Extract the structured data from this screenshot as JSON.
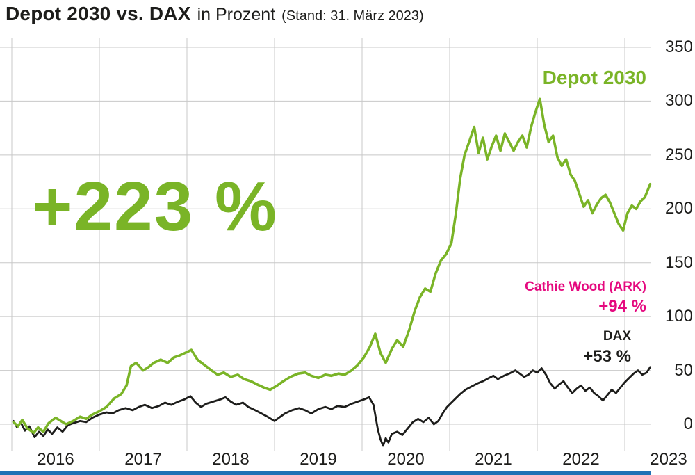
{
  "title": {
    "main": "Depot 2030 vs. DAX",
    "sub": "in Prozent",
    "note": "(Stand: 31. März 2023)"
  },
  "colors": {
    "green": "#7ab427",
    "pink": "#e5097f",
    "line_black": "#1d1d1b",
    "grid": "#c8c8c8",
    "blue": "#2071b5"
  },
  "annotations": {
    "big_return": "+223 %",
    "depot_label": "Depot 2030",
    "ark_label": "Cathie Wood (ARK)",
    "ark_return": "+94 %",
    "dax_label": "DAX",
    "dax_return": "+53 %"
  },
  "chart_data": {
    "type": "line",
    "title": "Depot 2030 vs. DAX in Prozent (Stand: 31. März 2023)",
    "xlabel": "",
    "ylabel": "Prozent",
    "grid": true,
    "legend_position": "annotated on chart",
    "x_tick_labels": [
      "2016",
      "2017",
      "2018",
      "2019",
      "2020",
      "2021",
      "2022",
      "2023"
    ],
    "y_ticks": [
      0,
      50,
      100,
      150,
      200,
      250,
      300,
      350
    ],
    "ylim": [
      -45,
      350
    ],
    "xlim_years": [
      2015.86,
      2023.3
    ],
    "series": [
      {
        "name": "DAX",
        "color": "#1d1d1b",
        "line_width": 2.8,
        "final_value_pct": 53,
        "points": [
          [
            2016.02,
            3
          ],
          [
            2016.06,
            -3
          ],
          [
            2016.1,
            2
          ],
          [
            2016.15,
            -6
          ],
          [
            2016.2,
            -2
          ],
          [
            2016.26,
            -12
          ],
          [
            2016.31,
            -7
          ],
          [
            2016.36,
            -11
          ],
          [
            2016.41,
            -5
          ],
          [
            2016.46,
            -9
          ],
          [
            2016.52,
            -3
          ],
          [
            2016.58,
            -7
          ],
          [
            2016.64,
            -1
          ],
          [
            2016.7,
            1
          ],
          [
            2016.78,
            3
          ],
          [
            2016.85,
            2
          ],
          [
            2016.92,
            6
          ],
          [
            2017.0,
            9
          ],
          [
            2017.08,
            11
          ],
          [
            2017.15,
            10
          ],
          [
            2017.22,
            13
          ],
          [
            2017.3,
            15
          ],
          [
            2017.38,
            13
          ],
          [
            2017.45,
            16
          ],
          [
            2017.52,
            18
          ],
          [
            2017.6,
            15
          ],
          [
            2017.68,
            17
          ],
          [
            2017.75,
            20
          ],
          [
            2017.82,
            18
          ],
          [
            2017.9,
            21
          ],
          [
            2017.97,
            23
          ],
          [
            2018.04,
            26
          ],
          [
            2018.1,
            20
          ],
          [
            2018.16,
            16
          ],
          [
            2018.22,
            19
          ],
          [
            2018.3,
            21
          ],
          [
            2018.38,
            23
          ],
          [
            2018.44,
            25
          ],
          [
            2018.5,
            21
          ],
          [
            2018.56,
            18
          ],
          [
            2018.64,
            20
          ],
          [
            2018.7,
            16
          ],
          [
            2018.78,
            13
          ],
          [
            2018.85,
            10
          ],
          [
            2018.92,
            7
          ],
          [
            2019.0,
            3
          ],
          [
            2019.05,
            6
          ],
          [
            2019.12,
            10
          ],
          [
            2019.2,
            13
          ],
          [
            2019.28,
            15
          ],
          [
            2019.35,
            13
          ],
          [
            2019.42,
            10
          ],
          [
            2019.5,
            14
          ],
          [
            2019.58,
            16
          ],
          [
            2019.65,
            14
          ],
          [
            2019.72,
            17
          ],
          [
            2019.8,
            16
          ],
          [
            2019.88,
            19
          ],
          [
            2019.95,
            21
          ],
          [
            2020.02,
            23
          ],
          [
            2020.08,
            25
          ],
          [
            2020.13,
            18
          ],
          [
            2020.18,
            -5
          ],
          [
            2020.21,
            -14
          ],
          [
            2020.24,
            -20
          ],
          [
            2020.27,
            -13
          ],
          [
            2020.3,
            -17
          ],
          [
            2020.34,
            -9
          ],
          [
            2020.4,
            -7
          ],
          [
            2020.46,
            -10
          ],
          [
            2020.52,
            -4
          ],
          [
            2020.58,
            2
          ],
          [
            2020.64,
            5
          ],
          [
            2020.7,
            2
          ],
          [
            2020.76,
            6
          ],
          [
            2020.82,
            0
          ],
          [
            2020.87,
            3
          ],
          [
            2020.92,
            10
          ],
          [
            2020.97,
            16
          ],
          [
            2021.02,
            20
          ],
          [
            2021.07,
            24
          ],
          [
            2021.12,
            28
          ],
          [
            2021.18,
            32
          ],
          [
            2021.25,
            35
          ],
          [
            2021.32,
            38
          ],
          [
            2021.38,
            40
          ],
          [
            2021.45,
            43
          ],
          [
            2021.5,
            45
          ],
          [
            2021.55,
            42
          ],
          [
            2021.62,
            45
          ],
          [
            2021.68,
            47
          ],
          [
            2021.75,
            50
          ],
          [
            2021.8,
            47
          ],
          [
            2021.85,
            44
          ],
          [
            2021.9,
            46
          ],
          [
            2021.95,
            50
          ],
          [
            2022.0,
            48
          ],
          [
            2022.05,
            52
          ],
          [
            2022.1,
            46
          ],
          [
            2022.15,
            38
          ],
          [
            2022.2,
            33
          ],
          [
            2022.25,
            37
          ],
          [
            2022.3,
            40
          ],
          [
            2022.35,
            34
          ],
          [
            2022.4,
            29
          ],
          [
            2022.45,
            33
          ],
          [
            2022.5,
            36
          ],
          [
            2022.55,
            31
          ],
          [
            2022.6,
            34
          ],
          [
            2022.65,
            29
          ],
          [
            2022.7,
            26
          ],
          [
            2022.75,
            22
          ],
          [
            2022.8,
            27
          ],
          [
            2022.85,
            32
          ],
          [
            2022.9,
            29
          ],
          [
            2022.95,
            34
          ],
          [
            2023.0,
            39
          ],
          [
            2023.05,
            43
          ],
          [
            2023.1,
            47
          ],
          [
            2023.15,
            50
          ],
          [
            2023.2,
            46
          ],
          [
            2023.25,
            48
          ],
          [
            2023.29,
            53
          ]
        ]
      },
      {
        "name": "Depot 2030",
        "color": "#7ab427",
        "line_width": 3.6,
        "final_value_pct": 223,
        "points": [
          [
            2016.02,
            2
          ],
          [
            2016.07,
            -2
          ],
          [
            2016.12,
            4
          ],
          [
            2016.18,
            -4
          ],
          [
            2016.25,
            -8
          ],
          [
            2016.3,
            -3
          ],
          [
            2016.36,
            -7
          ],
          [
            2016.42,
            1
          ],
          [
            2016.5,
            6
          ],
          [
            2016.56,
            3
          ],
          [
            2016.62,
            0
          ],
          [
            2016.7,
            3
          ],
          [
            2016.78,
            7
          ],
          [
            2016.85,
            5
          ],
          [
            2016.92,
            9
          ],
          [
            2017.0,
            12
          ],
          [
            2017.08,
            16
          ],
          [
            2017.17,
            24
          ],
          [
            2017.25,
            28
          ],
          [
            2017.31,
            36
          ],
          [
            2017.36,
            54
          ],
          [
            2017.42,
            57
          ],
          [
            2017.5,
            50
          ],
          [
            2017.56,
            53
          ],
          [
            2017.62,
            57
          ],
          [
            2017.7,
            60
          ],
          [
            2017.78,
            57
          ],
          [
            2017.85,
            62
          ],
          [
            2017.92,
            64
          ],
          [
            2018.0,
            67
          ],
          [
            2018.05,
            69
          ],
          [
            2018.12,
            60
          ],
          [
            2018.2,
            55
          ],
          [
            2018.28,
            50
          ],
          [
            2018.35,
            46
          ],
          [
            2018.42,
            48
          ],
          [
            2018.5,
            44
          ],
          [
            2018.58,
            46
          ],
          [
            2018.65,
            42
          ],
          [
            2018.73,
            40
          ],
          [
            2018.8,
            37
          ],
          [
            2018.88,
            34
          ],
          [
            2018.95,
            32
          ],
          [
            2019.03,
            36
          ],
          [
            2019.1,
            40
          ],
          [
            2019.18,
            44
          ],
          [
            2019.27,
            47
          ],
          [
            2019.35,
            48
          ],
          [
            2019.42,
            45
          ],
          [
            2019.5,
            43
          ],
          [
            2019.58,
            46
          ],
          [
            2019.65,
            45
          ],
          [
            2019.73,
            47
          ],
          [
            2019.8,
            46
          ],
          [
            2019.88,
            50
          ],
          [
            2019.95,
            55
          ],
          [
            2020.02,
            62
          ],
          [
            2020.09,
            72
          ],
          [
            2020.15,
            84
          ],
          [
            2020.21,
            66
          ],
          [
            2020.27,
            57
          ],
          [
            2020.34,
            70
          ],
          [
            2020.4,
            78
          ],
          [
            2020.47,
            72
          ],
          [
            2020.54,
            88
          ],
          [
            2020.6,
            105
          ],
          [
            2020.66,
            118
          ],
          [
            2020.72,
            126
          ],
          [
            2020.78,
            123
          ],
          [
            2020.84,
            140
          ],
          [
            2020.9,
            152
          ],
          [
            2020.96,
            158
          ],
          [
            2021.02,
            168
          ],
          [
            2021.07,
            195
          ],
          [
            2021.12,
            228
          ],
          [
            2021.17,
            250
          ],
          [
            2021.23,
            264
          ],
          [
            2021.28,
            276
          ],
          [
            2021.33,
            252
          ],
          [
            2021.38,
            266
          ],
          [
            2021.43,
            246
          ],
          [
            2021.48,
            258
          ],
          [
            2021.53,
            268
          ],
          [
            2021.58,
            254
          ],
          [
            2021.63,
            270
          ],
          [
            2021.68,
            262
          ],
          [
            2021.73,
            254
          ],
          [
            2021.78,
            262
          ],
          [
            2021.83,
            268
          ],
          [
            2021.88,
            257
          ],
          [
            2021.93,
            276
          ],
          [
            2021.98,
            290
          ],
          [
            2022.03,
            302
          ],
          [
            2022.08,
            278
          ],
          [
            2022.13,
            262
          ],
          [
            2022.18,
            268
          ],
          [
            2022.23,
            248
          ],
          [
            2022.28,
            240
          ],
          [
            2022.33,
            246
          ],
          [
            2022.38,
            232
          ],
          [
            2022.43,
            226
          ],
          [
            2022.48,
            214
          ],
          [
            2022.53,
            202
          ],
          [
            2022.58,
            208
          ],
          [
            2022.63,
            196
          ],
          [
            2022.68,
            204
          ],
          [
            2022.73,
            210
          ],
          [
            2022.78,
            213
          ],
          [
            2022.83,
            206
          ],
          [
            2022.88,
            196
          ],
          [
            2022.93,
            186
          ],
          [
            2022.98,
            180
          ],
          [
            2023.03,
            196
          ],
          [
            2023.08,
            203
          ],
          [
            2023.13,
            200
          ],
          [
            2023.18,
            207
          ],
          [
            2023.23,
            211
          ],
          [
            2023.29,
            223
          ]
        ]
      }
    ]
  }
}
